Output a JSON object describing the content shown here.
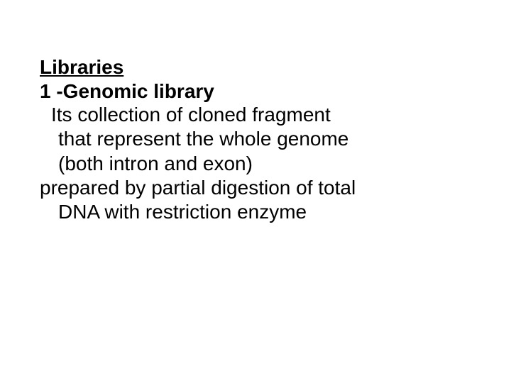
{
  "slide": {
    "heading": "Libraries",
    "subheading": "1 -Genomic library",
    "lines": [
      "Its collection of cloned fragment",
      "that represent the whole genome",
      "(both intron and exon)",
      "prepared by partial digestion of total",
      "DNA with restriction enzyme"
    ],
    "background_color": "#ffffff",
    "text_color": "#000000",
    "font_family": "Arial",
    "heading_fontsize": 28,
    "body_fontsize": 28,
    "font_weight_heading": "bold",
    "font_weight_body": "normal"
  }
}
